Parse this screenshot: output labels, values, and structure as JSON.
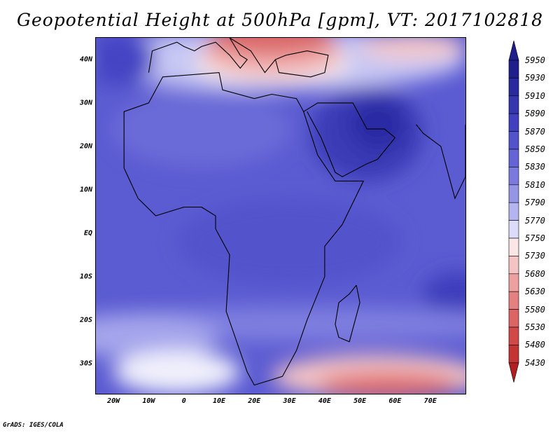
{
  "title": "Geopotential Height at 500hPa [gpm], VT: 2017102818",
  "credit": "GrADS: IGES/COLA",
  "map": {
    "lon_range": [
      -25,
      80
    ],
    "lat_range": [
      -37,
      45
    ],
    "lat_labels": [
      {
        "lat": 40,
        "text": "40N"
      },
      {
        "lat": 30,
        "text": "30N"
      },
      {
        "lat": 20,
        "text": "20N"
      },
      {
        "lat": 10,
        "text": "10N"
      },
      {
        "lat": 0,
        "text": "EQ"
      },
      {
        "lat": -10,
        "text": "10S"
      },
      {
        "lat": -20,
        "text": "20S"
      },
      {
        "lat": -30,
        "text": "30S"
      }
    ],
    "lon_labels": [
      {
        "lon": -20,
        "text": "20W"
      },
      {
        "lon": -10,
        "text": "10W"
      },
      {
        "lon": 0,
        "text": "0"
      },
      {
        "lon": 10,
        "text": "10E"
      },
      {
        "lon": 20,
        "text": "20E"
      },
      {
        "lon": 30,
        "text": "30E"
      },
      {
        "lon": 40,
        "text": "40E"
      },
      {
        "lon": 50,
        "text": "50E"
      },
      {
        "lon": 60,
        "text": "60E"
      },
      {
        "lon": 70,
        "text": "70E"
      }
    ]
  },
  "colorbar": {
    "levels": [
      "5950",
      "5930",
      "5910",
      "5890",
      "5870",
      "5850",
      "5830",
      "5810",
      "5790",
      "5770",
      "5750",
      "5730",
      "5680",
      "5630",
      "5580",
      "5530",
      "5480",
      "5430"
    ],
    "colors": [
      "#1e1e8c",
      "#2a2a9e",
      "#3535b0",
      "#4040c0",
      "#5252cc",
      "#6464d6",
      "#7a7ade",
      "#9595e6",
      "#b4b4f0",
      "#dcdcfa",
      "#fae6e6",
      "#f4c4c4",
      "#eda0a0",
      "#e58080",
      "#dc6464",
      "#d24848",
      "#c43434",
      "#b02020"
    ]
  },
  "fields": {
    "background": "#5b5bd2",
    "blobs": [
      {
        "name": "equatorial-ocean",
        "lon": 30,
        "lat": -2,
        "rlon": 32,
        "rlat": 10,
        "color": "#5252cc"
      },
      {
        "name": "arabian-high",
        "lon": 52,
        "lat": 23,
        "rlon": 16,
        "rlat": 11,
        "color": "#3a3ab5"
      },
      {
        "name": "arabian-core",
        "lon": 55,
        "lat": 25,
        "rlon": 8,
        "rlat": 6,
        "color": "#2c2ca4"
      },
      {
        "name": "sahara",
        "lon": 5,
        "lat": 24,
        "rlon": 26,
        "rlat": 9,
        "color": "#6a6ad8"
      },
      {
        "name": "indian-ocean-east",
        "lon": 78,
        "lat": -14,
        "rlon": 10,
        "rlat": 5,
        "color": "#3e3ebc"
      },
      {
        "name": "south-band",
        "lon": 30,
        "lat": -21,
        "rlon": 70,
        "rlat": 4,
        "color": "#7f7fe0"
      },
      {
        "name": "south-atlantic-light",
        "lon": -12,
        "lat": -24,
        "rlon": 22,
        "rlat": 5,
        "color": "#a5a5ec"
      },
      {
        "name": "south-white",
        "lon": -2,
        "lat": -32,
        "rlon": 18,
        "rlat": 5,
        "color": "#f0f0fc"
      },
      {
        "name": "south-pink",
        "lon": 55,
        "lat": -33,
        "rlon": 30,
        "rlat": 5,
        "color": "#f4c4c4"
      },
      {
        "name": "south-red",
        "lon": 58,
        "lat": -35,
        "rlon": 20,
        "rlat": 3,
        "color": "#e07070"
      },
      {
        "name": "north-light",
        "lon": 25,
        "lat": 40,
        "rlon": 55,
        "rlat": 7,
        "color": "#c8c8f4"
      },
      {
        "name": "north-white",
        "lon": 25,
        "lat": 39,
        "rlon": 22,
        "rlat": 5,
        "color": "#f8eeee"
      },
      {
        "name": "north-pink",
        "lon": 25,
        "lat": 41,
        "rlon": 20,
        "rlat": 5,
        "color": "#f0b0b0"
      },
      {
        "name": "north-red",
        "lon": 25,
        "lat": 45,
        "rlon": 18,
        "rlat": 4,
        "color": "#dc6868"
      },
      {
        "name": "ne-pink",
        "lon": 65,
        "lat": 43,
        "rlon": 15,
        "rlat": 3,
        "color": "#f4c8c8"
      },
      {
        "name": "nw-dark",
        "lon": -18,
        "lat": 40,
        "rlon": 10,
        "rlat": 6,
        "color": "#4444c4"
      }
    ]
  },
  "coastline": {
    "africa": [
      [
        -17,
        21
      ],
      [
        -17,
        28
      ],
      [
        -10,
        30
      ],
      [
        -6,
        36
      ],
      [
        10,
        37
      ],
      [
        11,
        33
      ],
      [
        20,
        31
      ],
      [
        25,
        32
      ],
      [
        32,
        31
      ],
      [
        34,
        28
      ],
      [
        38,
        18
      ],
      [
        43,
        12
      ],
      [
        51,
        12
      ],
      [
        45,
        2
      ],
      [
        40,
        -3
      ],
      [
        40,
        -10
      ],
      [
        35,
        -20
      ],
      [
        32,
        -27
      ],
      [
        28,
        -33
      ],
      [
        20,
        -35
      ],
      [
        18,
        -32
      ],
      [
        12,
        -18
      ],
      [
        13,
        -5
      ],
      [
        9,
        1
      ],
      [
        9,
        4
      ],
      [
        5,
        6
      ],
      [
        0,
        6
      ],
      [
        -8,
        4
      ],
      [
        -13,
        8
      ],
      [
        -17,
        15
      ],
      [
        -17,
        21
      ]
    ],
    "arabia": [
      [
        34,
        28
      ],
      [
        38,
        30
      ],
      [
        48,
        30
      ],
      [
        52,
        24
      ],
      [
        57,
        24
      ],
      [
        60,
        22
      ],
      [
        55,
        17
      ],
      [
        52,
        16
      ],
      [
        45,
        13
      ],
      [
        43,
        14
      ],
      [
        39,
        22
      ],
      [
        35,
        28
      ]
    ],
    "madagascar": [
      [
        49,
        -12
      ],
      [
        50,
        -16
      ],
      [
        47,
        -25
      ],
      [
        44,
        -24
      ],
      [
        43,
        -21
      ],
      [
        44,
        -16
      ],
      [
        47,
        -14
      ],
      [
        49,
        -12
      ]
    ],
    "europe": [
      [
        -10,
        37
      ],
      [
        -9,
        42
      ],
      [
        -2,
        44
      ],
      [
        0,
        43
      ],
      [
        3,
        42
      ],
      [
        5,
        43
      ],
      [
        9,
        44
      ],
      [
        13,
        41
      ],
      [
        16,
        38
      ],
      [
        18,
        40
      ],
      [
        16,
        41
      ],
      [
        13,
        45
      ],
      [
        19,
        42
      ],
      [
        23,
        37
      ],
      [
        26,
        40
      ],
      [
        29,
        41
      ],
      [
        35,
        42
      ],
      [
        41,
        41
      ],
      [
        40,
        37
      ],
      [
        36,
        36
      ],
      [
        27,
        37
      ],
      [
        26,
        40
      ]
    ],
    "india": [
      [
        66,
        25
      ],
      [
        68,
        23
      ],
      [
        73,
        20
      ],
      [
        77,
        8
      ],
      [
        80,
        13
      ],
      [
        80,
        25
      ]
    ]
  }
}
